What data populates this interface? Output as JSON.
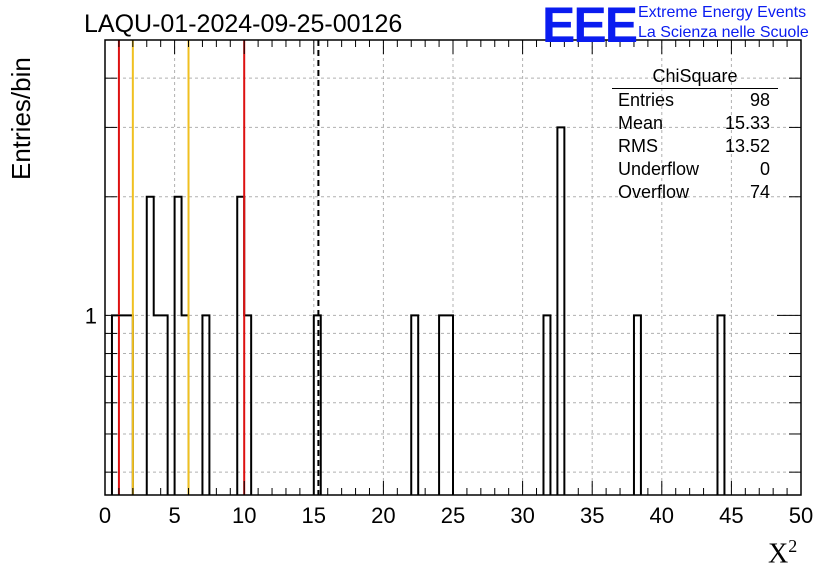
{
  "header": {
    "title": "LAQU-01-2024-09-25-00126",
    "logo_text": "EEE",
    "logo_line1": "Extreme Energy Events",
    "logo_line2": "La Scienza nelle Scuole"
  },
  "stats": {
    "title": "ChiSquare",
    "rows": [
      {
        "label": "Entries",
        "value": "98"
      },
      {
        "label": "Mean",
        "value": "15.33"
      },
      {
        "label": "RMS",
        "value": "13.52"
      },
      {
        "label": "Underflow",
        "value": "0"
      },
      {
        "label": "Overflow",
        "value": "74"
      }
    ]
  },
  "chart_data": {
    "type": "bar",
    "histogram": true,
    "xlabel": "X",
    "xlabel_sup": "2",
    "ylabel": "Entries/bin",
    "xlim": [
      0,
      50
    ],
    "ylim": [
      0.35,
      5
    ],
    "yscale": "log",
    "bin_width": 0.5,
    "x_ticks": [
      0,
      5,
      10,
      15,
      20,
      25,
      30,
      35,
      40,
      45,
      50
    ],
    "y_tick_labels": [
      1
    ],
    "grid": true,
    "bins": [
      {
        "x0": 0.5,
        "x1": 1.0,
        "count": 1
      },
      {
        "x0": 1.0,
        "x1": 1.5,
        "count": 1
      },
      {
        "x0": 1.5,
        "x1": 2.0,
        "count": 1
      },
      {
        "x0": 3.0,
        "x1": 3.5,
        "count": 2
      },
      {
        "x0": 3.5,
        "x1": 4.0,
        "count": 1
      },
      {
        "x0": 4.0,
        "x1": 4.5,
        "count": 1
      },
      {
        "x0": 5.0,
        "x1": 5.5,
        "count": 2
      },
      {
        "x0": 5.5,
        "x1": 6.0,
        "count": 1
      },
      {
        "x0": 7.0,
        "x1": 7.5,
        "count": 1
      },
      {
        "x0": 9.5,
        "x1": 10.0,
        "count": 2
      },
      {
        "x0": 10.0,
        "x1": 10.5,
        "count": 1
      },
      {
        "x0": 15.0,
        "x1": 15.5,
        "count": 1
      },
      {
        "x0": 22.0,
        "x1": 22.5,
        "count": 1
      },
      {
        "x0": 24.0,
        "x1": 24.5,
        "count": 1
      },
      {
        "x0": 24.5,
        "x1": 25.0,
        "count": 1
      },
      {
        "x0": 31.5,
        "x1": 32.0,
        "count": 1
      },
      {
        "x0": 32.5,
        "x1": 33.0,
        "count": 3
      },
      {
        "x0": 38.0,
        "x1": 38.5,
        "count": 1
      },
      {
        "x0": 44.0,
        "x1": 44.5,
        "count": 1
      }
    ],
    "vertical_lines": [
      {
        "x": 1.0,
        "color": "#dd1111",
        "style": "solid"
      },
      {
        "x": 2.0,
        "color": "#f0c020",
        "style": "solid"
      },
      {
        "x": 6.0,
        "color": "#f0c020",
        "style": "solid"
      },
      {
        "x": 10.0,
        "color": "#dd1111",
        "style": "solid"
      },
      {
        "x": 15.33,
        "color": "#000000",
        "style": "dashed"
      }
    ]
  }
}
